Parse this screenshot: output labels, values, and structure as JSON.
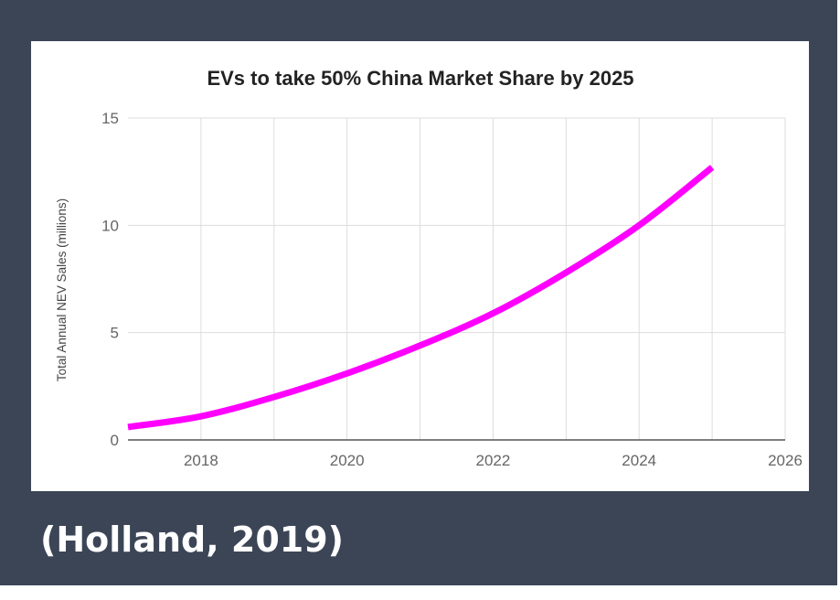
{
  "citation": "(Holland, 2019)",
  "colors": {
    "background": "#3b4556",
    "series": "#ff00ff",
    "grid": "#dddddd",
    "axis": "#555555"
  },
  "chart_data": {
    "type": "line",
    "title": "EVs to take 50% China Market Share by 2025",
    "xlabel": "",
    "ylabel": "Total Annual NEV Sales (millions)",
    "xlim": [
      2017,
      2026
    ],
    "ylim": [
      0,
      15
    ],
    "x_ticks": [
      "2018",
      "2020",
      "2022",
      "2024",
      "2026"
    ],
    "y_ticks": [
      "0",
      "5",
      "10",
      "15"
    ],
    "grid": true,
    "legend": "none",
    "series": [
      {
        "x": [
          2017,
          2018,
          2019,
          2020,
          2021,
          2022,
          2023,
          2024,
          2025
        ],
        "values": [
          0.6,
          1.1,
          2.0,
          3.1,
          4.4,
          5.9,
          7.8,
          10.0,
          12.7
        ]
      }
    ]
  }
}
